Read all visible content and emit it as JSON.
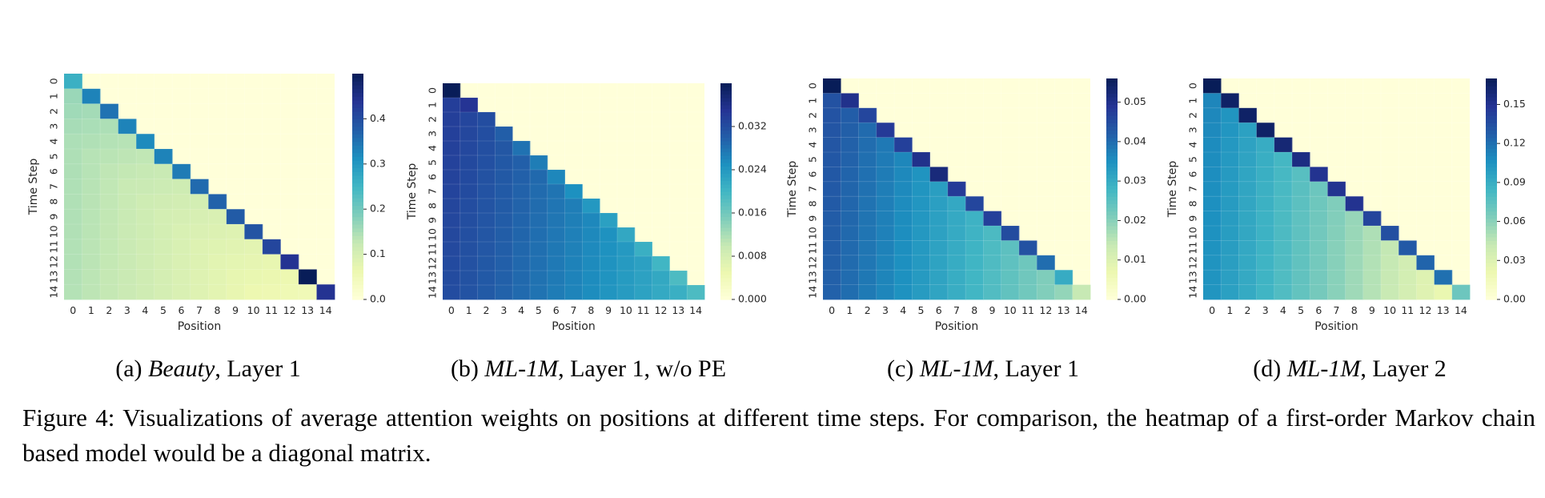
{
  "chart_data": [
    {
      "type": "heatmap",
      "caption": {
        "prefix": "(a) ",
        "dataset": "Beauty",
        "rest": ", Layer 1"
      },
      "xlabel": "Position",
      "ylabel": "Time Step",
      "x_ticks": [
        "0",
        "1",
        "2",
        "3",
        "4",
        "5",
        "6",
        "7",
        "8",
        "9",
        "10",
        "11",
        "12",
        "13",
        "14"
      ],
      "y_ticks": [
        "0",
        "1",
        "2",
        "3",
        "4",
        "5",
        "6",
        "7",
        "8",
        "9",
        "10",
        "11",
        "12",
        "13",
        "14"
      ],
      "color_range": [
        0,
        0.5
      ],
      "colorbar_ticks": [
        "0.0",
        "0.1",
        "0.2",
        "0.3",
        "0.4"
      ],
      "masked": "upper-triangle",
      "fill": {
        "diag": [
          0.26,
          0.33,
          0.35,
          0.33,
          0.32,
          0.33,
          0.34,
          0.36,
          0.37,
          0.38,
          0.39,
          0.41,
          0.44,
          0.5,
          0.44
        ],
        "lower_start": 0.15,
        "lower_end": 0.03,
        "near_boost": 0.08
      }
    },
    {
      "type": "heatmap",
      "caption": {
        "prefix": "(b) ",
        "dataset": "ML-1M",
        "rest": ", Layer 1, w/o PE"
      },
      "xlabel": "Position",
      "ylabel": "Time Step",
      "x_ticks": [
        "0",
        "1",
        "2",
        "3",
        "4",
        "5",
        "6",
        "7",
        "8",
        "9",
        "10",
        "11",
        "12",
        "13",
        "14"
      ],
      "y_ticks": [
        "0",
        "1",
        "2",
        "3",
        "4",
        "5",
        "6",
        "7",
        "8",
        "9",
        "10",
        "11",
        "12",
        "13",
        "14"
      ],
      "color_range": [
        0,
        0.04
      ],
      "colorbar_ticks": [
        "0.000",
        "0.008",
        "0.016",
        "0.024",
        "0.032"
      ],
      "masked": "upper-triangle",
      "fill": {
        "diag": [
          0.04,
          0.035,
          0.032,
          0.03,
          0.028,
          0.027,
          0.026,
          0.025,
          0.024,
          0.023,
          0.022,
          0.021,
          0.02,
          0.019,
          0.019
        ],
        "lower_start": 0.034,
        "lower_end": 0.02,
        "near_boost": 0.0
      }
    },
    {
      "type": "heatmap",
      "caption": {
        "prefix": "(c) ",
        "dataset": "ML-1M",
        "rest": ", Layer 1"
      },
      "xlabel": "Position",
      "ylabel": "Time Step",
      "x_ticks": [
        "0",
        "1",
        "2",
        "3",
        "4",
        "5",
        "6",
        "7",
        "8",
        "9",
        "10",
        "11",
        "12",
        "13",
        "14"
      ],
      "y_ticks": [
        "0",
        "1",
        "2",
        "3",
        "4",
        "5",
        "6",
        "7",
        "8",
        "9",
        "10",
        "11",
        "12",
        "13",
        "14"
      ],
      "color_range": [
        0,
        0.056
      ],
      "colorbar_ticks": [
        "0.00",
        "0.01",
        "0.02",
        "0.03",
        "0.04",
        "0.05"
      ],
      "masked": "upper-triangle",
      "fill": {
        "diag": [
          0.056,
          0.05,
          0.046,
          0.048,
          0.047,
          0.05,
          0.052,
          0.048,
          0.046,
          0.047,
          0.045,
          0.044,
          0.04,
          0.03,
          0.014
        ],
        "lower_start": 0.044,
        "lower_end": 0.017,
        "near_boost": 0.01
      }
    },
    {
      "type": "heatmap",
      "caption": {
        "prefix": "(d) ",
        "dataset": "ML-1M",
        "rest": ", Layer 2"
      },
      "xlabel": "Position",
      "ylabel": "Time Step",
      "x_ticks": [
        "0",
        "1",
        "2",
        "3",
        "4",
        "5",
        "6",
        "7",
        "8",
        "9",
        "10",
        "11",
        "12",
        "13",
        "14"
      ],
      "y_ticks": [
        "0",
        "1",
        "2",
        "3",
        "4",
        "5",
        "6",
        "7",
        "8",
        "9",
        "10",
        "11",
        "12",
        "13",
        "14"
      ],
      "color_range": [
        0,
        0.17
      ],
      "colorbar_ticks": [
        "0.00",
        "0.03",
        "0.06",
        "0.09",
        "0.12",
        "0.15"
      ],
      "masked": "upper-triangle",
      "fill": {
        "diag": [
          0.17,
          0.165,
          0.165,
          0.165,
          0.16,
          0.155,
          0.15,
          0.15,
          0.15,
          0.14,
          0.135,
          0.13,
          0.125,
          0.12,
          0.07
        ],
        "lower_start": 0.11,
        "lower_end": 0.015,
        "near_boost": 0.02
      }
    }
  ],
  "figure_caption": "Figure 4: Visualizations of average attention weights on positions at different time steps. For comparison, the heatmap of a first-order Markov chain based model would be a diagonal matrix."
}
